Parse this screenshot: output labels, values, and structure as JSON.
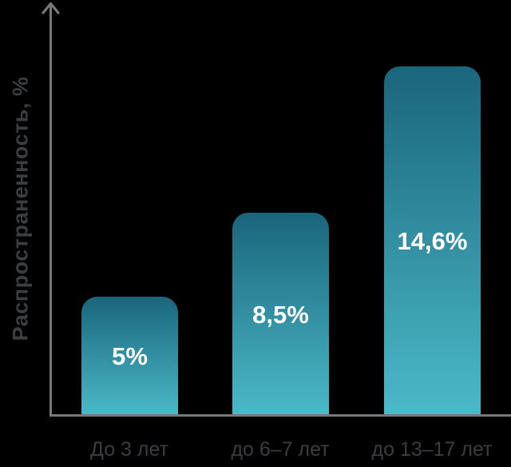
{
  "chart_data": {
    "type": "bar",
    "title": "",
    "xlabel": "",
    "ylabel": "Распространенность, %",
    "categories": [
      "До 3 лет",
      "до 6–7 лет",
      "до 13–17 лет"
    ],
    "values": [
      5,
      8.5,
      14.6
    ],
    "value_labels": [
      "5%",
      "8,5%",
      "14,6%"
    ],
    "ylim": [
      0,
      15
    ],
    "grid": false,
    "legend": "none",
    "colors": {
      "background": "#000000",
      "bar_gradient_top": "#1a657b",
      "bar_gradient_bottom": "#4bbac8",
      "axis": "#75797a",
      "tick_label": "#3a3e40",
      "value_label": "#ffffff"
    }
  }
}
